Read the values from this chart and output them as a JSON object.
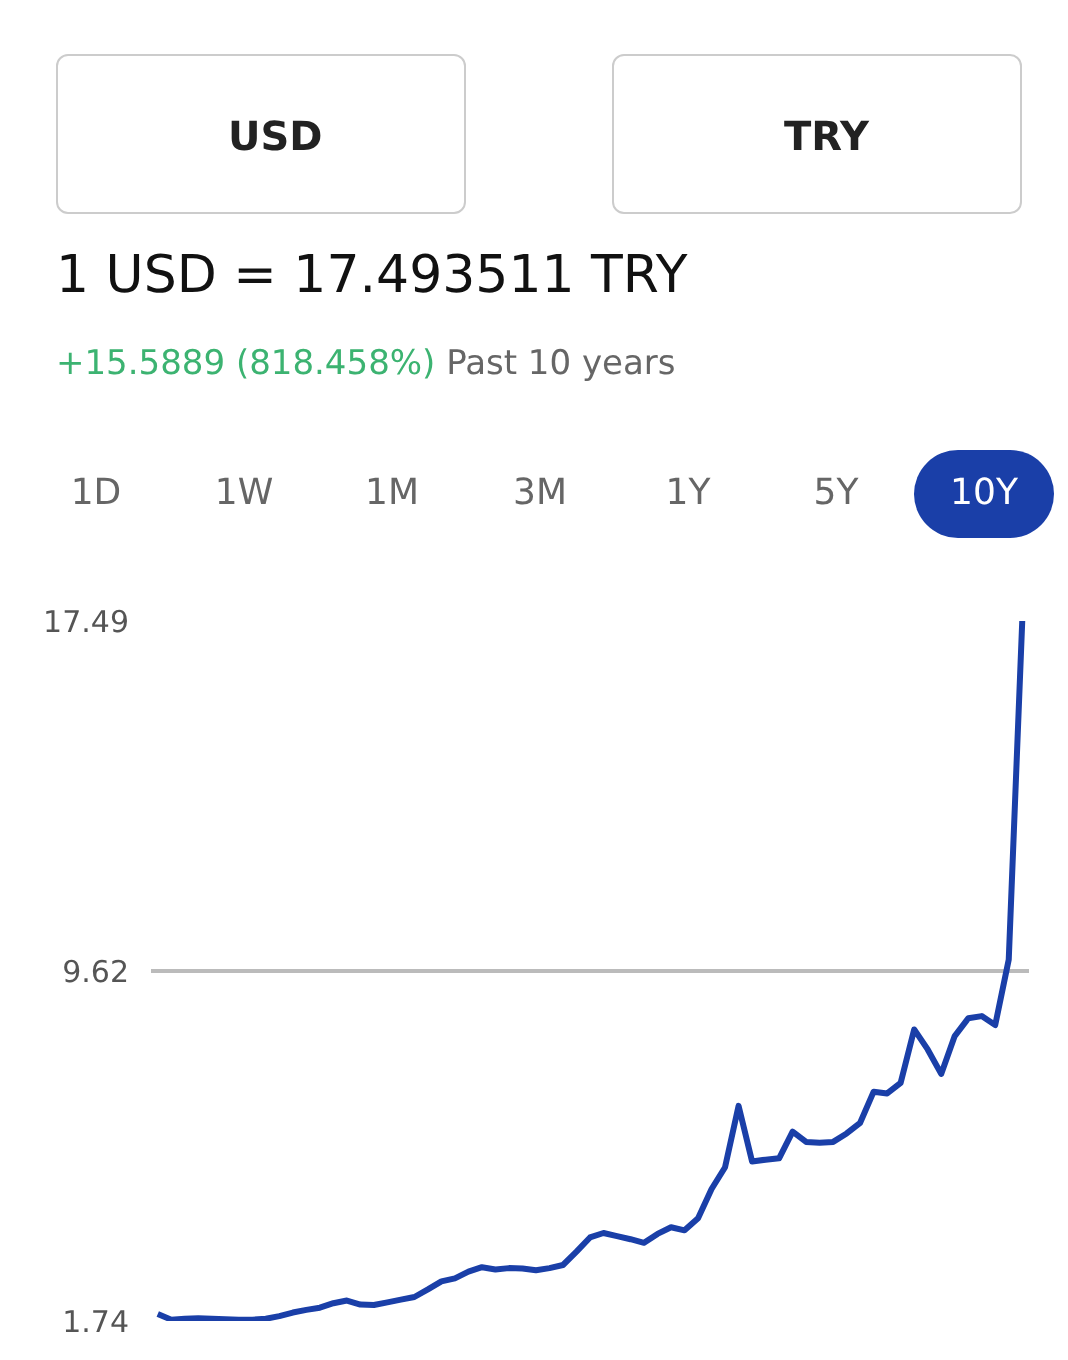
{
  "chart_data": {
    "type": "line",
    "title": "1 USD = 17.493511 TRY",
    "subtitle": "+15.5889 (818.458%)",
    "annotations": [
      "USD",
      "TRY",
      "Past 10 years",
      "1D",
      "1W",
      "1M",
      "3M",
      "1Y",
      "5Y",
      "10Y"
    ],
    "categories": [
      null,
      null,
      null,
      null,
      null,
      null,
      null,
      null,
      null,
      null,
      null,
      null,
      null,
      null,
      null,
      null,
      null,
      null,
      null,
      null,
      null,
      null,
      null,
      null,
      null,
      null,
      null,
      null,
      null,
      null,
      null,
      null,
      null,
      null,
      null,
      null,
      null,
      null,
      null,
      null,
      null,
      null,
      null,
      null,
      null,
      null,
      null,
      null,
      null,
      null,
      null,
      null,
      null,
      null,
      null,
      null,
      null,
      null,
      null,
      null,
      null,
      null,
      null,
      null,
      null
    ],
    "series": [
      {
        "color": "#1a3fa8",
        "values": [
          1.9,
          1.77,
          1.79,
          1.8,
          1.79,
          1.78,
          1.77,
          1.77,
          1.79,
          1.85,
          1.93,
          1.99,
          2.04,
          2.14,
          2.2,
          2.11,
          2.1,
          2.16,
          2.22,
          2.28,
          2.45,
          2.63,
          2.7,
          2.85,
          2.95,
          2.9,
          2.93,
          2.92,
          2.88,
          2.93,
          3.0,
          3.3,
          3.62,
          3.72,
          3.65,
          3.58,
          3.5,
          3.7,
          3.85,
          3.78,
          4.05,
          4.71,
          5.2,
          6.58,
          5.33,
          5.37,
          5.4,
          6.0,
          5.77,
          5.75,
          5.77,
          5.96,
          6.2,
          6.9,
          6.86,
          7.1,
          8.3,
          7.85,
          7.3,
          8.15,
          8.55,
          8.6,
          8.4,
          9.87,
          17.49
        ]
      }
    ],
    "ylim": [
      1.74,
      17.49
    ],
    "yticks": [
      1.74,
      9.62,
      17.49
    ],
    "grid": "y",
    "tick_labels": "y",
    "line_style": "solid",
    "marker": "none"
  }
}
